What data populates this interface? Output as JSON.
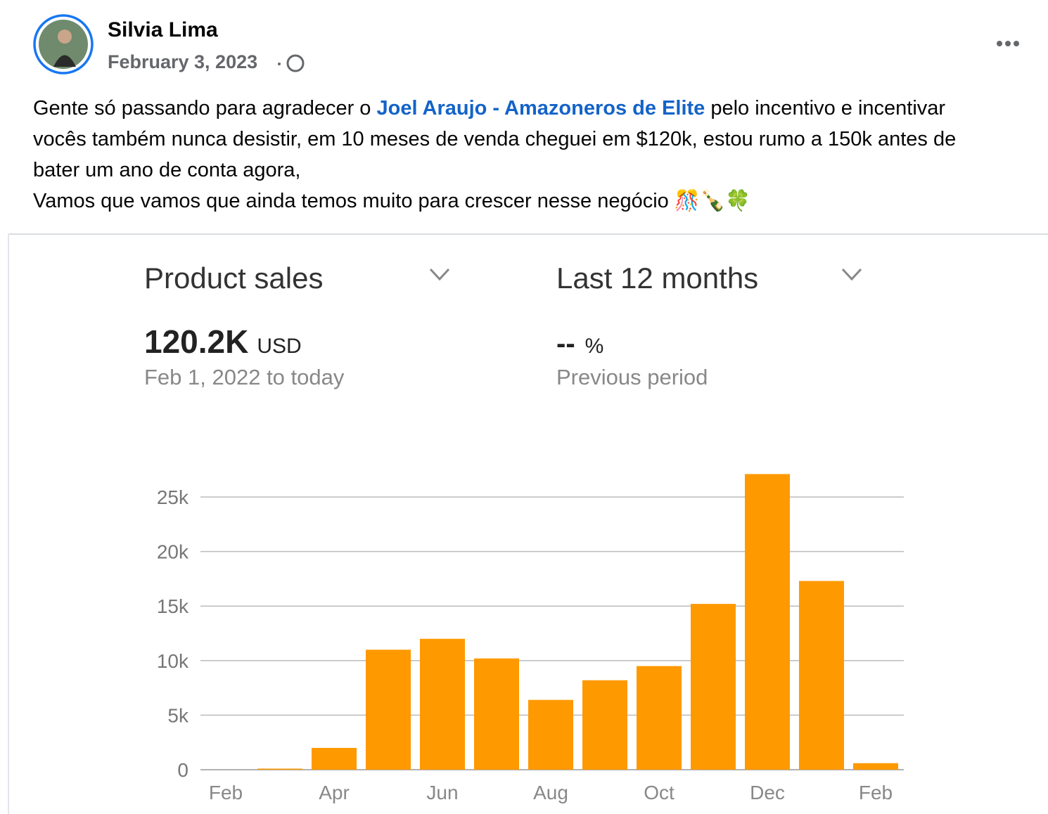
{
  "post": {
    "author": "Silvia Lima",
    "date": "February 3, 2023",
    "text_before": "Gente só passando para agradecer o ",
    "mention": "Joel Araujo - Amazoneros de Elite",
    "text_after": " pelo incentivo e incentivar vocês também nunca desistir, em 10 meses de venda cheguei em $120k, estou rumo a 150k antes de bater um ano de conta agora,",
    "text_line2": "Vamos que vamos que ainda temos muito para crescer nesse negócio 🎊🍾🍀"
  },
  "chart_data": {
    "type": "bar",
    "title": "Product sales",
    "period": "Last 12 months",
    "total": "120.2K",
    "total_unit": "USD",
    "range_label": "Feb 1, 2022 to today",
    "change": "--",
    "change_unit": "%",
    "change_label": "Previous period",
    "categories": [
      "Feb",
      null,
      "Apr",
      null,
      "Jun",
      null,
      "Aug",
      null,
      "Oct",
      null,
      "Dec",
      null,
      "Feb"
    ],
    "values": [
      0,
      100,
      2000,
      11000,
      12000,
      10200,
      6400,
      8200,
      9500,
      15200,
      27100,
      17300,
      600
    ],
    "color": "#ff9900",
    "ylim": [
      0,
      27500
    ],
    "yticks": [
      0,
      {
        "value": 5000,
        "label": "5k"
      },
      {
        "value": 10000,
        "label": "10k"
      },
      {
        "value": 15000,
        "label": "15k"
      },
      {
        "value": 20000,
        "label": "20k"
      },
      {
        "value": 25000,
        "label": "25k"
      }
    ],
    "grid": true
  }
}
